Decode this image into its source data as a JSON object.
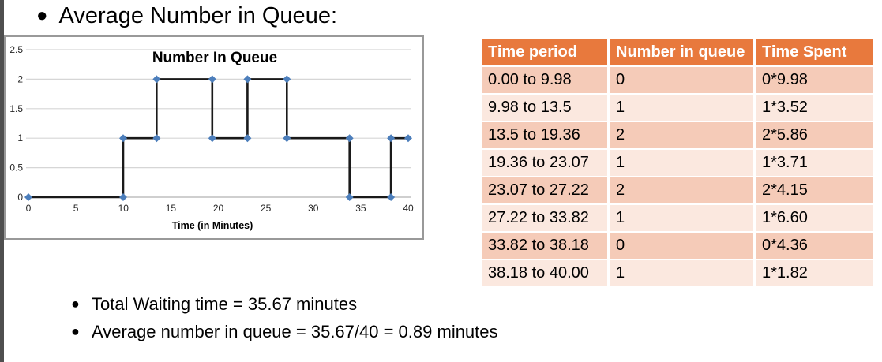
{
  "slide": {
    "title": "Average Number in Queue:",
    "bullets": [
      "Total Waiting time = 35.67 minutes",
      "Average number in queue = 35.67/40 = 0.89 minutes"
    ]
  },
  "table": {
    "headers": [
      "Time period",
      "Number in queue",
      "Time Spent"
    ],
    "rows": [
      [
        "0.00 to 9.98",
        "0",
        "0*9.98"
      ],
      [
        "9.98 to 13.5",
        "1",
        "1*3.52"
      ],
      [
        "13.5 to 19.36",
        "2",
        "2*5.86"
      ],
      [
        "19.36 to 23.07",
        "1",
        "1*3.71"
      ],
      [
        "23.07 to 27.22",
        "2",
        "2*4.15"
      ],
      [
        "27.22 to 33.82",
        "1",
        "1*6.60"
      ],
      [
        "33.82 to 38.18",
        "0",
        "0*4.36"
      ],
      [
        "38.18 to 40.00",
        "1",
        "1*1.82"
      ]
    ],
    "colors": {
      "header_bg": "#E8793D",
      "header_text": "#FFFFFF",
      "row_odd_bg": "#F5CBB8",
      "row_even_bg": "#FBE8DF"
    }
  },
  "chart_data": {
    "type": "line",
    "title": "Number In Queue",
    "xlabel": "Time (in Minutes)",
    "ylabel": "",
    "xlim": [
      0,
      40
    ],
    "ylim": [
      0,
      2.5
    ],
    "x_ticks": [
      0,
      5,
      10,
      15,
      20,
      25,
      30,
      35,
      40
    ],
    "y_ticks": [
      0,
      0.5,
      1,
      1.5,
      2,
      2.5
    ],
    "grid": true,
    "legend": "none",
    "colors": {
      "gridline": "#D6D6D6",
      "axis": "#BFBFBF",
      "tick_text": "#262626",
      "title_text": "#000000"
    },
    "series": [
      {
        "name": "Number In Queue",
        "step": true,
        "points": [
          [
            0,
            0
          ],
          [
            9.98,
            0
          ],
          [
            9.98,
            1
          ],
          [
            13.5,
            1
          ],
          [
            13.5,
            2
          ],
          [
            19.36,
            2
          ],
          [
            19.36,
            1
          ],
          [
            23.07,
            1
          ],
          [
            23.07,
            2
          ],
          [
            27.22,
            2
          ],
          [
            27.22,
            1
          ],
          [
            33.82,
            1
          ],
          [
            33.82,
            0
          ],
          [
            38.18,
            0
          ],
          [
            38.18,
            1
          ],
          [
            40,
            1
          ]
        ],
        "line_color": "#1A1A1A",
        "marker": "diamond",
        "marker_color": "#4C7EBB"
      }
    ]
  }
}
